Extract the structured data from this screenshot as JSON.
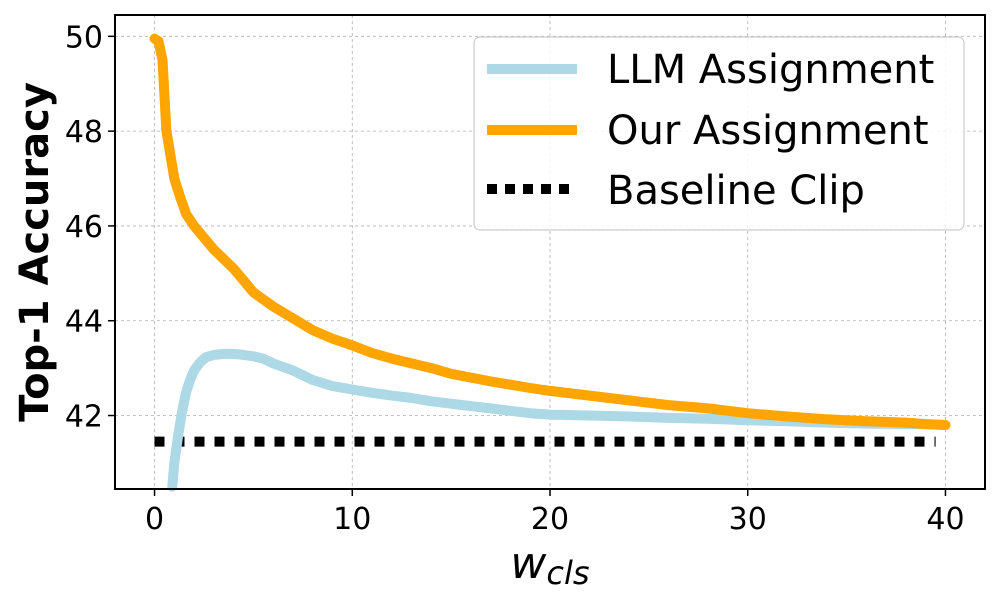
{
  "chart_data": {
    "type": "line",
    "title": "",
    "xlabel": "w",
    "xlabel_subscript": "cls",
    "ylabel": "Top-1 Accuracy",
    "xlim": [
      -2,
      42
    ],
    "ylim": [
      40.45,
      50.45
    ],
    "xticks": [
      0,
      10,
      20,
      30,
      40
    ],
    "yticks": [
      42,
      44,
      46,
      48,
      50
    ],
    "grid": true,
    "legend_position": "top-right",
    "series": [
      {
        "name": "LLM Assignment",
        "color": "#add8e6",
        "style": "solid",
        "x": [
          0.9,
          1.0,
          1.2,
          1.4,
          1.6,
          1.8,
          2.0,
          2.3,
          2.6,
          3.0,
          3.5,
          4.0,
          4.5,
          5.0,
          5.5,
          6,
          7,
          8,
          9,
          10,
          11,
          12,
          13,
          14,
          15,
          16,
          17,
          18,
          19,
          20,
          22,
          24,
          26,
          28,
          30,
          32,
          34,
          36,
          38,
          39,
          40
        ],
        "y": [
          40.5,
          41.0,
          41.6,
          42.1,
          42.5,
          42.75,
          42.95,
          43.12,
          43.23,
          43.28,
          43.3,
          43.3,
          43.28,
          43.25,
          43.2,
          43.1,
          42.95,
          42.75,
          42.62,
          42.55,
          42.48,
          42.42,
          42.37,
          42.3,
          42.25,
          42.2,
          42.15,
          42.1,
          42.05,
          42.02,
          42.0,
          41.98,
          41.95,
          41.93,
          41.9,
          41.88,
          41.85,
          41.83,
          41.82,
          41.82,
          41.8
        ]
      },
      {
        "name": "Our Assignment",
        "color": "#ffa500",
        "style": "solid",
        "x": [
          0,
          0.2,
          0.4,
          0.6,
          0.8,
          1.0,
          1.3,
          1.6,
          2.0,
          2.5,
          3.0,
          3.5,
          4.0,
          4.5,
          5.0,
          6,
          7,
          8,
          9,
          10,
          11,
          12,
          13,
          14,
          15,
          16,
          17,
          18,
          19,
          20,
          22,
          24,
          26,
          28,
          30,
          32,
          34,
          36,
          38,
          39,
          40
        ],
        "y": [
          49.95,
          49.9,
          49.5,
          48.0,
          47.5,
          47.0,
          46.6,
          46.25,
          46.0,
          45.75,
          45.5,
          45.3,
          45.1,
          44.85,
          44.6,
          44.3,
          44.05,
          43.8,
          43.62,
          43.48,
          43.32,
          43.2,
          43.1,
          43.0,
          42.88,
          42.8,
          42.72,
          42.65,
          42.58,
          42.52,
          42.42,
          42.32,
          42.22,
          42.15,
          42.05,
          41.98,
          41.92,
          41.88,
          41.85,
          41.82,
          41.8
        ]
      },
      {
        "name": "Baseline Clip",
        "color": "#000000",
        "style": "dotted",
        "x": [
          0,
          39.5
        ],
        "y": [
          41.45,
          41.45
        ]
      }
    ]
  }
}
